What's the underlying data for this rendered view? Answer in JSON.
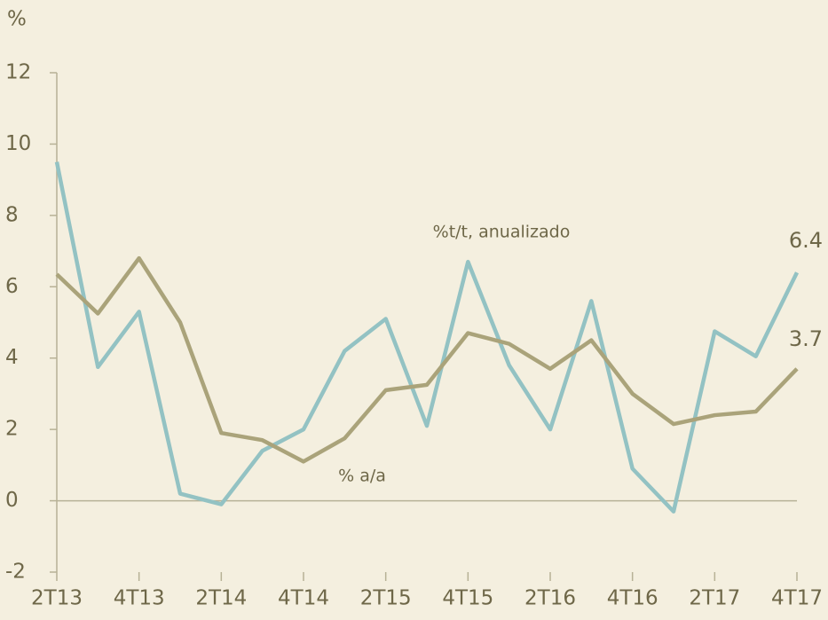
{
  "chart_data": {
    "type": "line",
    "y_axis_label": "%",
    "categories": [
      "2T13",
      null,
      "4T13",
      null,
      "2T14",
      null,
      "4T14",
      null,
      "2T15",
      null,
      "4T15",
      null,
      "2T16",
      null,
      "4T16",
      null,
      "2T17",
      null,
      "4T17"
    ],
    "series": [
      {
        "name": "%t/t, anualizado",
        "color": "#93c2c3",
        "values": [
          9.5,
          3.75,
          5.3,
          0.2,
          -0.1,
          1.4,
          2.0,
          4.2,
          5.1,
          2.1,
          6.7,
          3.8,
          2.0,
          5.6,
          0.9,
          -0.3,
          4.75,
          4.05,
          6.4
        ]
      },
      {
        "name": "% a/a",
        "color": "#aaa37a",
        "values": [
          6.35,
          5.25,
          6.8,
          5.0,
          1.9,
          1.7,
          1.1,
          1.75,
          3.1,
          3.25,
          4.7,
          4.4,
          3.7,
          4.5,
          3.0,
          2.15,
          2.4,
          2.5,
          3.7
        ]
      }
    ],
    "ylim": [
      -2,
      12
    ],
    "yticks": [
      -2,
      0,
      2,
      4,
      6,
      8,
      10,
      12
    ],
    "grid": false
  }
}
